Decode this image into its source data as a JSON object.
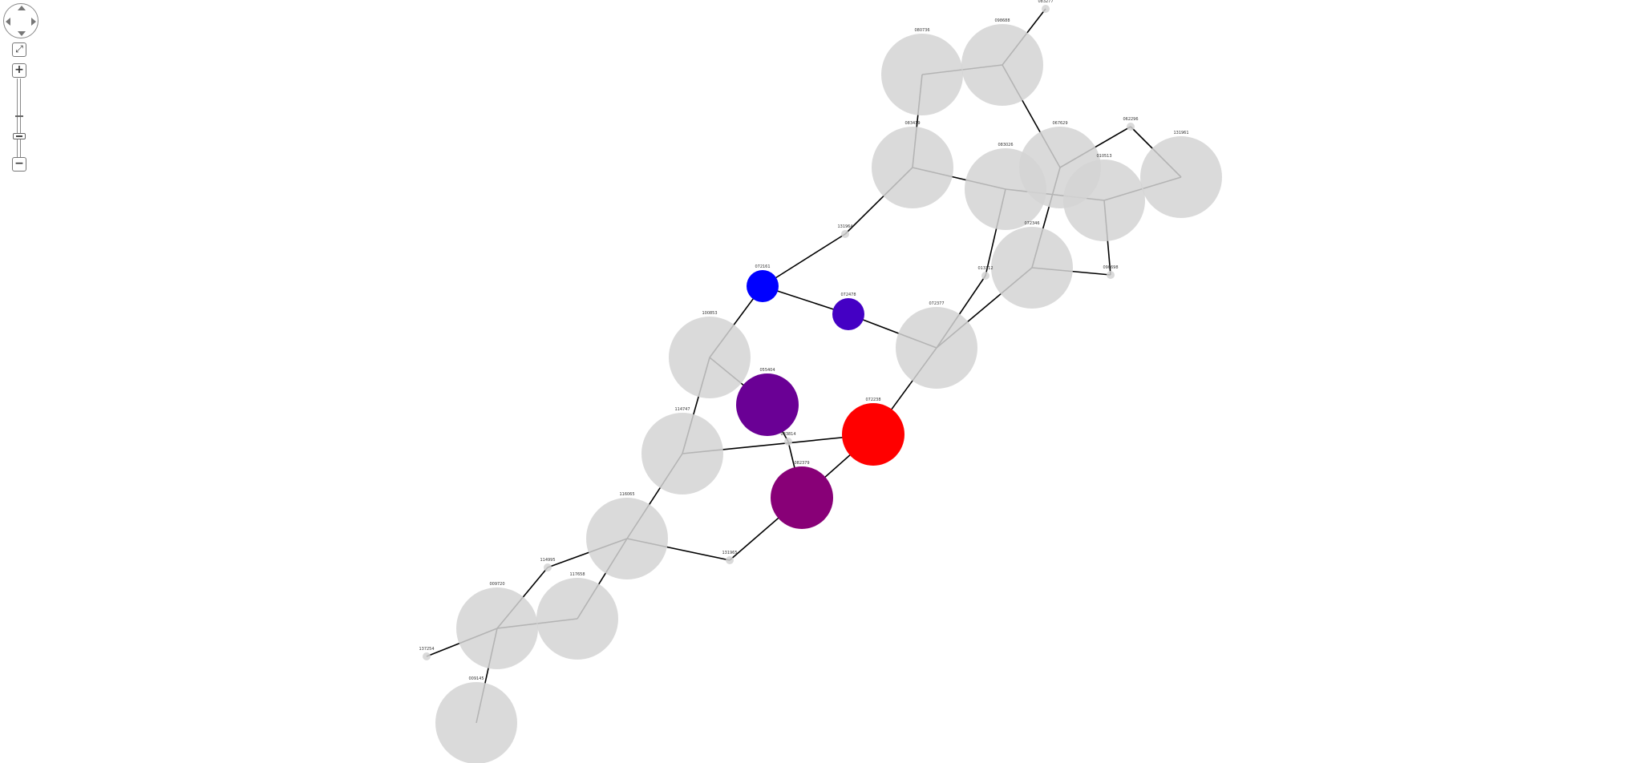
{
  "controls": {
    "fit_symbol": "⤢",
    "zoom_in_symbol": "+",
    "zoom_out_symbol": "−"
  },
  "colors": {
    "inactive_node": "#d3d3d3",
    "edge": "#000000",
    "node_blue": "#0000ff",
    "node_indigo": "#4400c4",
    "node_purple": "#6a0095",
    "node_magenta": "#880077",
    "node_red": "#ff0000"
  },
  "network": {
    "nodes": [
      {
        "id": "n1",
        "label": "083277",
        "size": "dot",
        "color": "#d3d3d3"
      },
      {
        "id": "n2",
        "label": "098688",
        "size": "large",
        "color": "#d3d3d3"
      },
      {
        "id": "n3",
        "label": "080736",
        "size": "large",
        "color": "#d3d3d3"
      },
      {
        "id": "n4",
        "label": "083419",
        "size": "large",
        "color": "#d3d3d3"
      },
      {
        "id": "n5",
        "label": "083026",
        "size": "large",
        "color": "#d3d3d3"
      },
      {
        "id": "n6",
        "label": "067629",
        "size": "large",
        "color": "#d3d3d3"
      },
      {
        "id": "n7",
        "label": "062296",
        "size": "dot",
        "color": "#d3d3d3"
      },
      {
        "id": "n8",
        "label": "131961",
        "size": "large",
        "color": "#d3d3d3"
      },
      {
        "id": "n9",
        "label": "010513",
        "size": "large",
        "color": "#d3d3d3"
      },
      {
        "id": "n10",
        "label": "131964",
        "size": "dot",
        "color": "#d3d3d3"
      },
      {
        "id": "n11",
        "label": "072346",
        "size": "large",
        "color": "#d3d3d3"
      },
      {
        "id": "n12",
        "label": "013312",
        "size": "dot",
        "color": "#d3d3d3"
      },
      {
        "id": "n13",
        "label": "090698",
        "size": "dot",
        "color": "#d3d3d3"
      },
      {
        "id": "n14",
        "label": "072161",
        "size": "small",
        "color": "#0000ff"
      },
      {
        "id": "n15",
        "label": "072478",
        "size": "small",
        "color": "#4400c4"
      },
      {
        "id": "n16",
        "label": "072377",
        "size": "large",
        "color": "#d3d3d3"
      },
      {
        "id": "n17",
        "label": "100853",
        "size": "large",
        "color": "#d3d3d3"
      },
      {
        "id": "n18",
        "label": "055404",
        "size": "big",
        "color": "#6a0095"
      },
      {
        "id": "n19",
        "label": "072238",
        "size": "big",
        "color": "#ff0000"
      },
      {
        "id": "n20",
        "label": "114747",
        "size": "large",
        "color": "#d3d3d3"
      },
      {
        "id": "n21",
        "label": "083814",
        "size": "dot",
        "color": "#d3d3d3"
      },
      {
        "id": "n22",
        "label": "082379",
        "size": "big",
        "color": "#880077"
      },
      {
        "id": "n23",
        "label": "116065",
        "size": "large",
        "color": "#d3d3d3"
      },
      {
        "id": "n24",
        "label": "131965",
        "size": "dot",
        "color": "#d3d3d3"
      },
      {
        "id": "n25",
        "label": "114995",
        "size": "dot",
        "color": "#d3d3d3"
      },
      {
        "id": "n26",
        "label": "117658",
        "size": "large",
        "color": "#d3d3d3"
      },
      {
        "id": "n27",
        "label": "009720",
        "size": "large",
        "color": "#d3d3d3"
      },
      {
        "id": "n28",
        "label": "137254",
        "size": "dot",
        "color": "#d3d3d3"
      },
      {
        "id": "n29",
        "label": "009145",
        "size": "large",
        "color": "#d3d3d3"
      }
    ],
    "edges": [
      [
        "n1",
        "n2"
      ],
      [
        "n2",
        "n3"
      ],
      [
        "n3",
        "n4"
      ],
      [
        "n2",
        "n6"
      ],
      [
        "n4",
        "n5"
      ],
      [
        "n5",
        "n9"
      ],
      [
        "n6",
        "n7"
      ],
      [
        "n7",
        "n8"
      ],
      [
        "n8",
        "n9"
      ],
      [
        "n9",
        "n13"
      ],
      [
        "n6",
        "n11"
      ],
      [
        "n11",
        "n13"
      ],
      [
        "n5",
        "n12"
      ],
      [
        "n12",
        "n16"
      ],
      [
        "n11",
        "n16"
      ],
      [
        "n4",
        "n10"
      ],
      [
        "n10",
        "n14"
      ],
      [
        "n14",
        "n15"
      ],
      [
        "n15",
        "n16"
      ],
      [
        "n16",
        "n19"
      ],
      [
        "n14",
        "n17"
      ],
      [
        "n17",
        "n18"
      ],
      [
        "n17",
        "n20"
      ],
      [
        "n20",
        "n19"
      ],
      [
        "n18",
        "n21"
      ],
      [
        "n21",
        "n22"
      ],
      [
        "n19",
        "n22"
      ],
      [
        "n22",
        "n24"
      ],
      [
        "n20",
        "n23"
      ],
      [
        "n23",
        "n24"
      ],
      [
        "n23",
        "n25"
      ],
      [
        "n23",
        "n26"
      ],
      [
        "n25",
        "n27"
      ],
      [
        "n26",
        "n27"
      ],
      [
        "n27",
        "n28"
      ],
      [
        "n27",
        "n29"
      ]
    ]
  }
}
